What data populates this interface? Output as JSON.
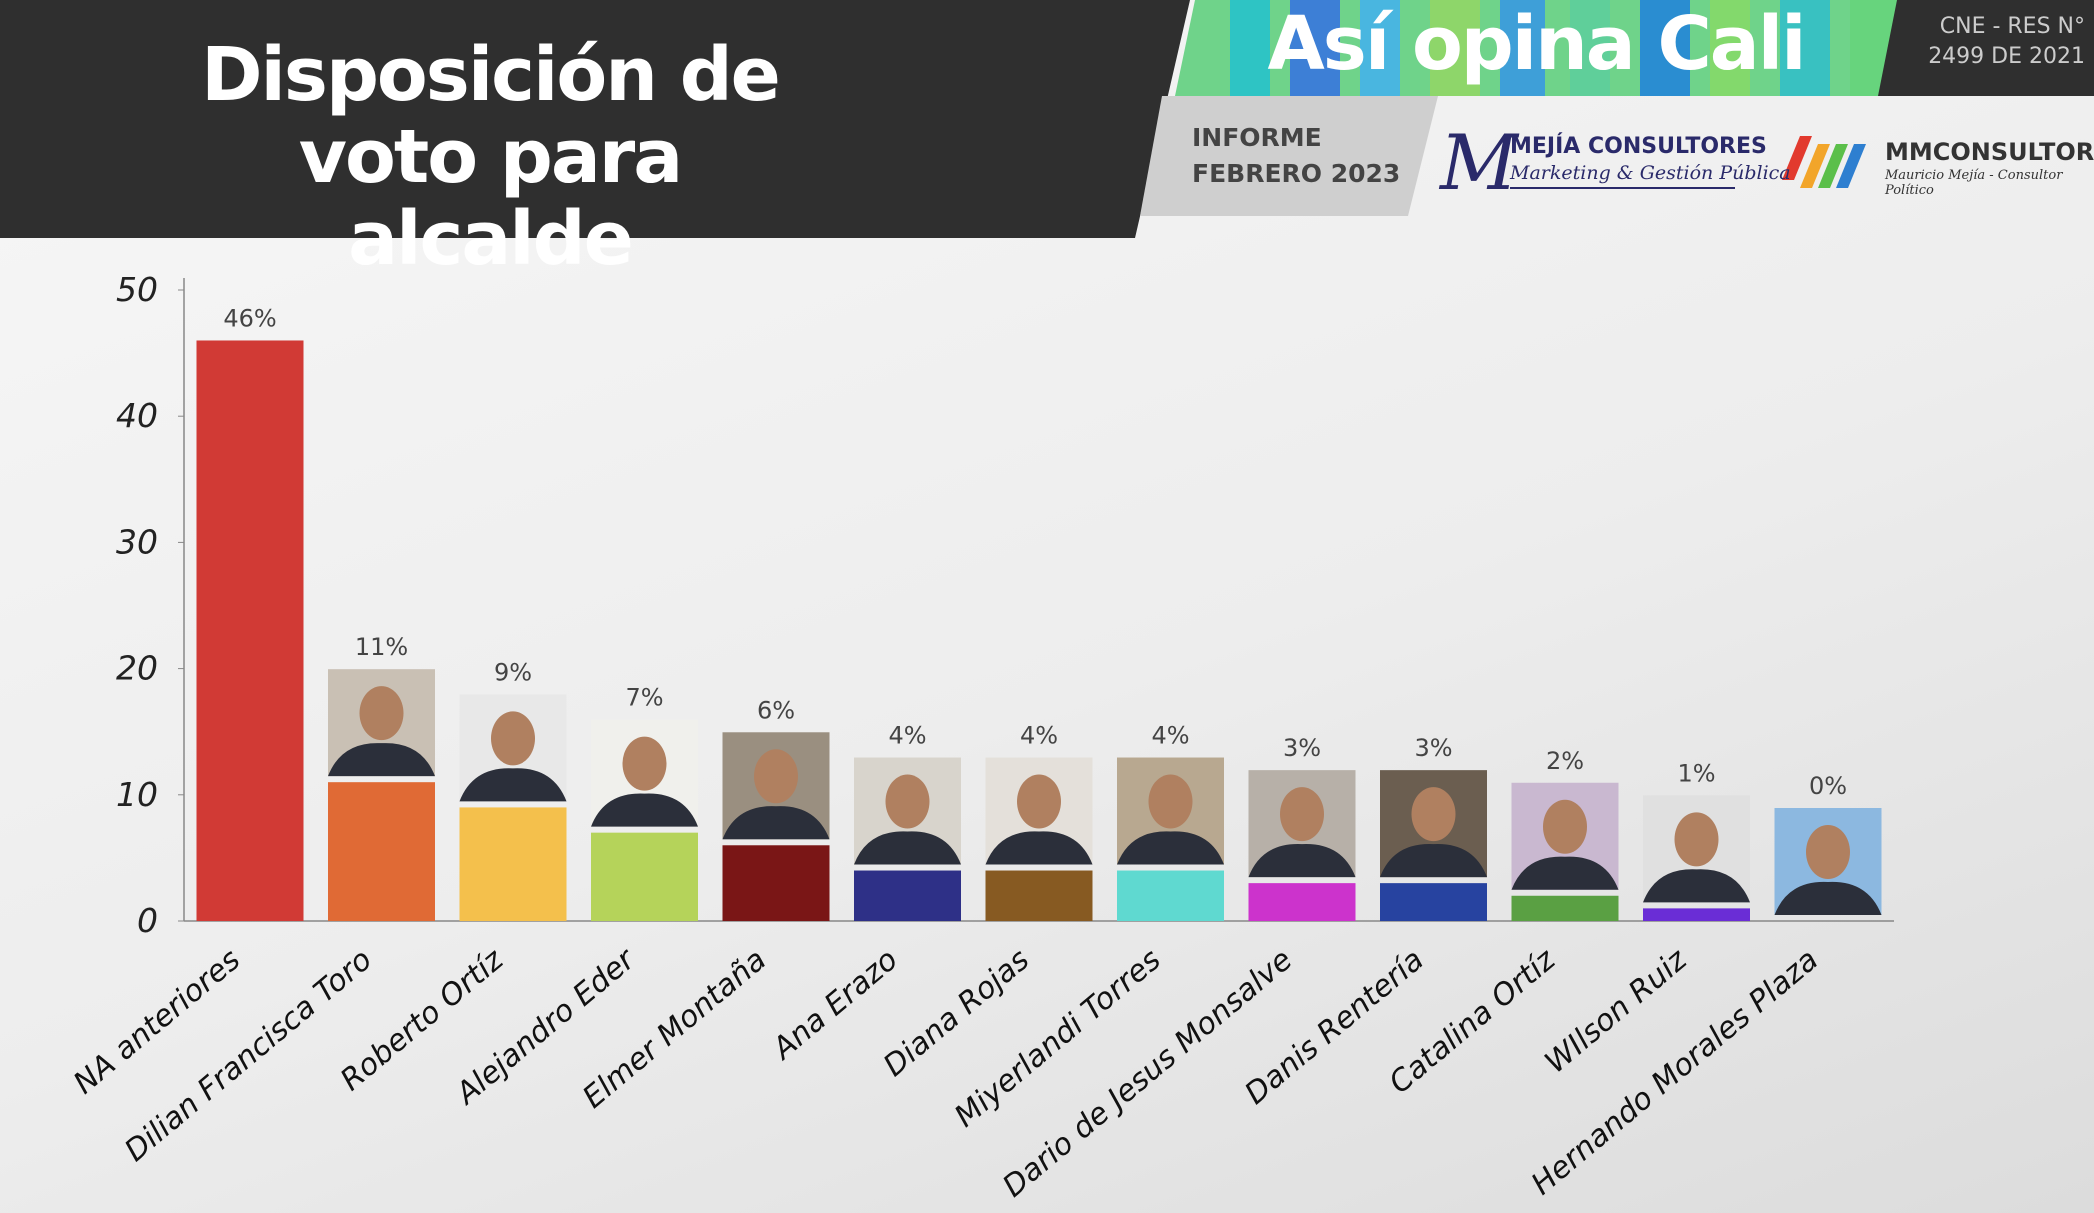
{
  "header": {
    "brand": "Así opina Cali",
    "registry": "CNE - RES N° 2499 DE 2021",
    "report": "INFORME FEBRERO 2023",
    "logo1_name": "MEJÍA CONSULTORES",
    "logo1_tagline": "Marketing & Gestión Pública",
    "logo2_name": "MMCONSULTOR",
    "logo2_tagline": "Mauricio Mejía - Consultor Político"
  },
  "chart_data": {
    "type": "bar",
    "title": "Disposición de voto para alcalde",
    "categories": [
      "NA anteriores",
      "Dilian Francisca Toro",
      "Roberto Ortíz",
      "Alejandro Eder",
      "Elmer Montaña",
      "Ana Erazo",
      "Diana Rojas",
      "Miyerlandi Torres",
      "Dario de Jesus Monsalve",
      "Danis Rentería",
      "Catalina Ortíz",
      "WIlson Ruiz",
      "Hernando Morales Plaza"
    ],
    "values": [
      46,
      11,
      9,
      7,
      6,
      4,
      4,
      4,
      3,
      3,
      2,
      1,
      0
    ],
    "value_labels": [
      "46%",
      "11%",
      "9%",
      "7%",
      "6%",
      "4%",
      "4%",
      "4%",
      "3%",
      "3%",
      "2%",
      "1%",
      "0%"
    ],
    "colors": [
      "#d13a35",
      "#e06a35",
      "#f4c04c",
      "#b5d35a",
      "#7a1616",
      "#2e3087",
      "#875a22",
      "#5fd9d0",
      "#cc33cc",
      "#2743a0",
      "#5aa043",
      "#6a2dd6",
      "#2d8fd8"
    ],
    "ylim": [
      0,
      50
    ],
    "yticks": [
      0,
      10,
      20,
      30,
      40,
      50
    ]
  }
}
